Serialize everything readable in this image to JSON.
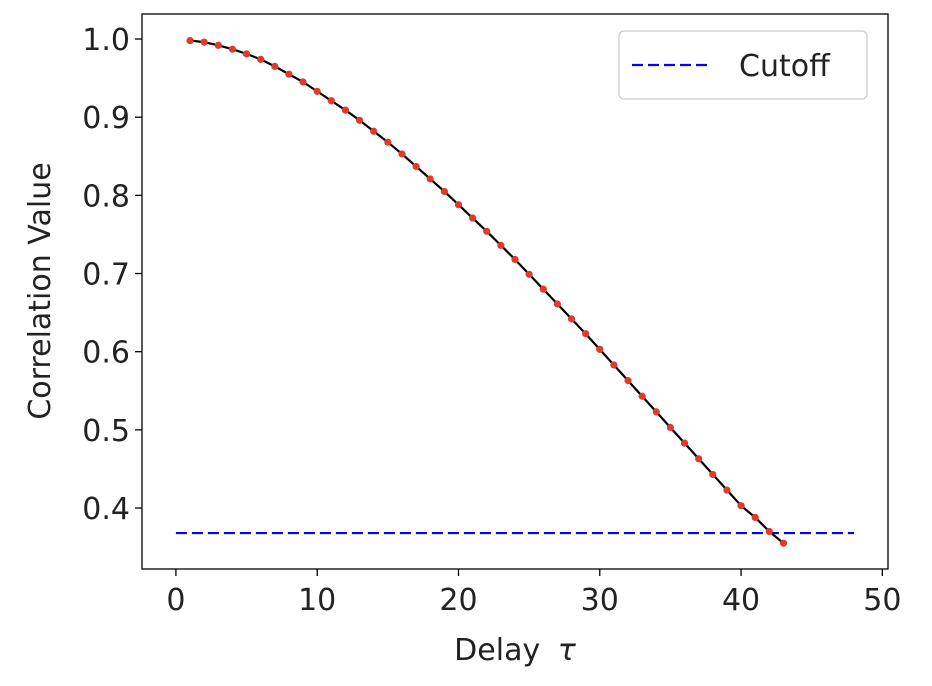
{
  "chart_data": {
    "type": "line",
    "title": "",
    "xlabel_text": "Delay",
    "xlabel_symbol": "τ",
    "ylabel": "Correlation Value",
    "xlim": [
      -2.4,
      50.4
    ],
    "ylim": [
      0.322,
      1.032
    ],
    "x_ticks": [
      0,
      10,
      20,
      30,
      40,
      50
    ],
    "y_ticks": [
      0.4,
      0.5,
      0.6,
      0.7,
      0.8,
      0.9,
      1.0
    ],
    "x_tick_labels": [
      "0",
      "10",
      "20",
      "30",
      "40",
      "50"
    ],
    "y_tick_labels": [
      "0.4",
      "0.5",
      "0.6",
      "0.7",
      "0.8",
      "0.9",
      "1.0"
    ],
    "grid": false,
    "legend_position": "top-right",
    "series": [
      {
        "style": "solid-line-with-markers",
        "line_color": "#000000",
        "marker_color": "#e03a2a",
        "x": [
          1,
          2,
          3,
          4,
          5,
          6,
          7,
          8,
          9,
          10,
          11,
          12,
          13,
          14,
          15,
          16,
          17,
          18,
          19,
          20,
          21,
          22,
          23,
          24,
          25,
          26,
          27,
          28,
          29,
          30,
          31,
          32,
          33,
          34,
          35,
          36,
          37,
          38,
          39,
          40,
          41,
          42,
          43
        ],
        "y": [
          0.998,
          0.996,
          0.992,
          0.987,
          0.981,
          0.974,
          0.965,
          0.955,
          0.945,
          0.933,
          0.921,
          0.909,
          0.896,
          0.882,
          0.868,
          0.853,
          0.837,
          0.821,
          0.805,
          0.788,
          0.771,
          0.754,
          0.736,
          0.718,
          0.699,
          0.68,
          0.661,
          0.642,
          0.623,
          0.603,
          0.583,
          0.563,
          0.543,
          0.523,
          0.503,
          0.483,
          0.463,
          0.443,
          0.423,
          0.403,
          0.388,
          0.37,
          0.355
        ]
      },
      {
        "name": "Cutoff",
        "style": "dashed",
        "color": "#0000ff",
        "x": [
          0,
          48
        ],
        "y": [
          0.368,
          0.368
        ]
      }
    ]
  }
}
